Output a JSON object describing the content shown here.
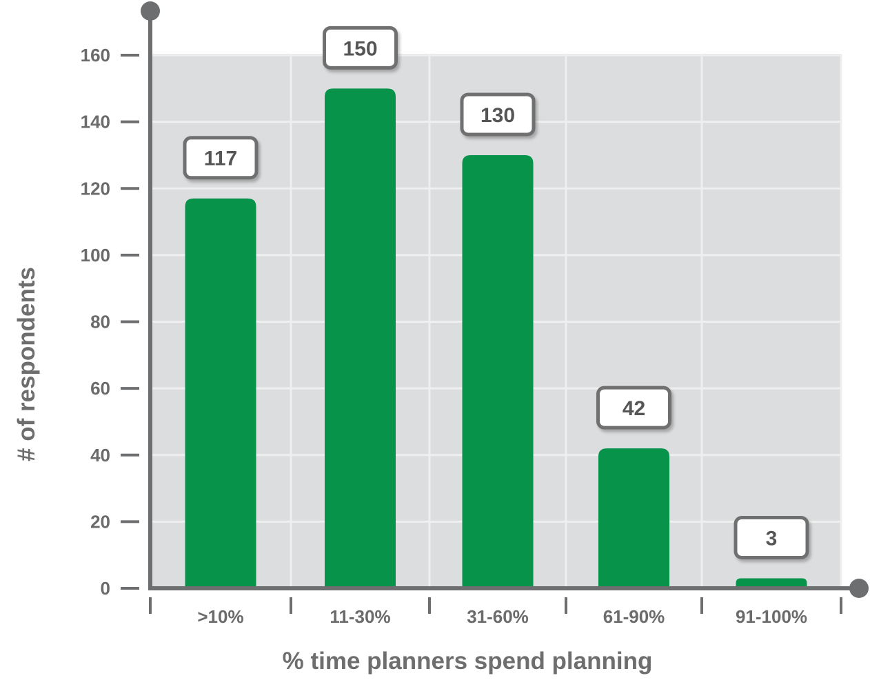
{
  "chart_data": {
    "type": "bar",
    "categories": [
      ">10%",
      "11-30%",
      "31-60%",
      "61-90%",
      "91-100%"
    ],
    "values": [
      117,
      150,
      130,
      42,
      3
    ],
    "title": "",
    "xlabel": "% time planners spend planning",
    "ylabel": "# of respondents",
    "ylim": [
      0,
      160
    ],
    "yticks": [
      0,
      20,
      40,
      60,
      80,
      100,
      120,
      140,
      160
    ],
    "grid": true,
    "legend": "none",
    "colors": {
      "bar": "#07934a",
      "plot_background": "#dcdddf",
      "gridline": "#efefef",
      "axis": "#6d6e70",
      "label_box_border": "#707070",
      "label_box_fill": "#ffffff"
    }
  }
}
